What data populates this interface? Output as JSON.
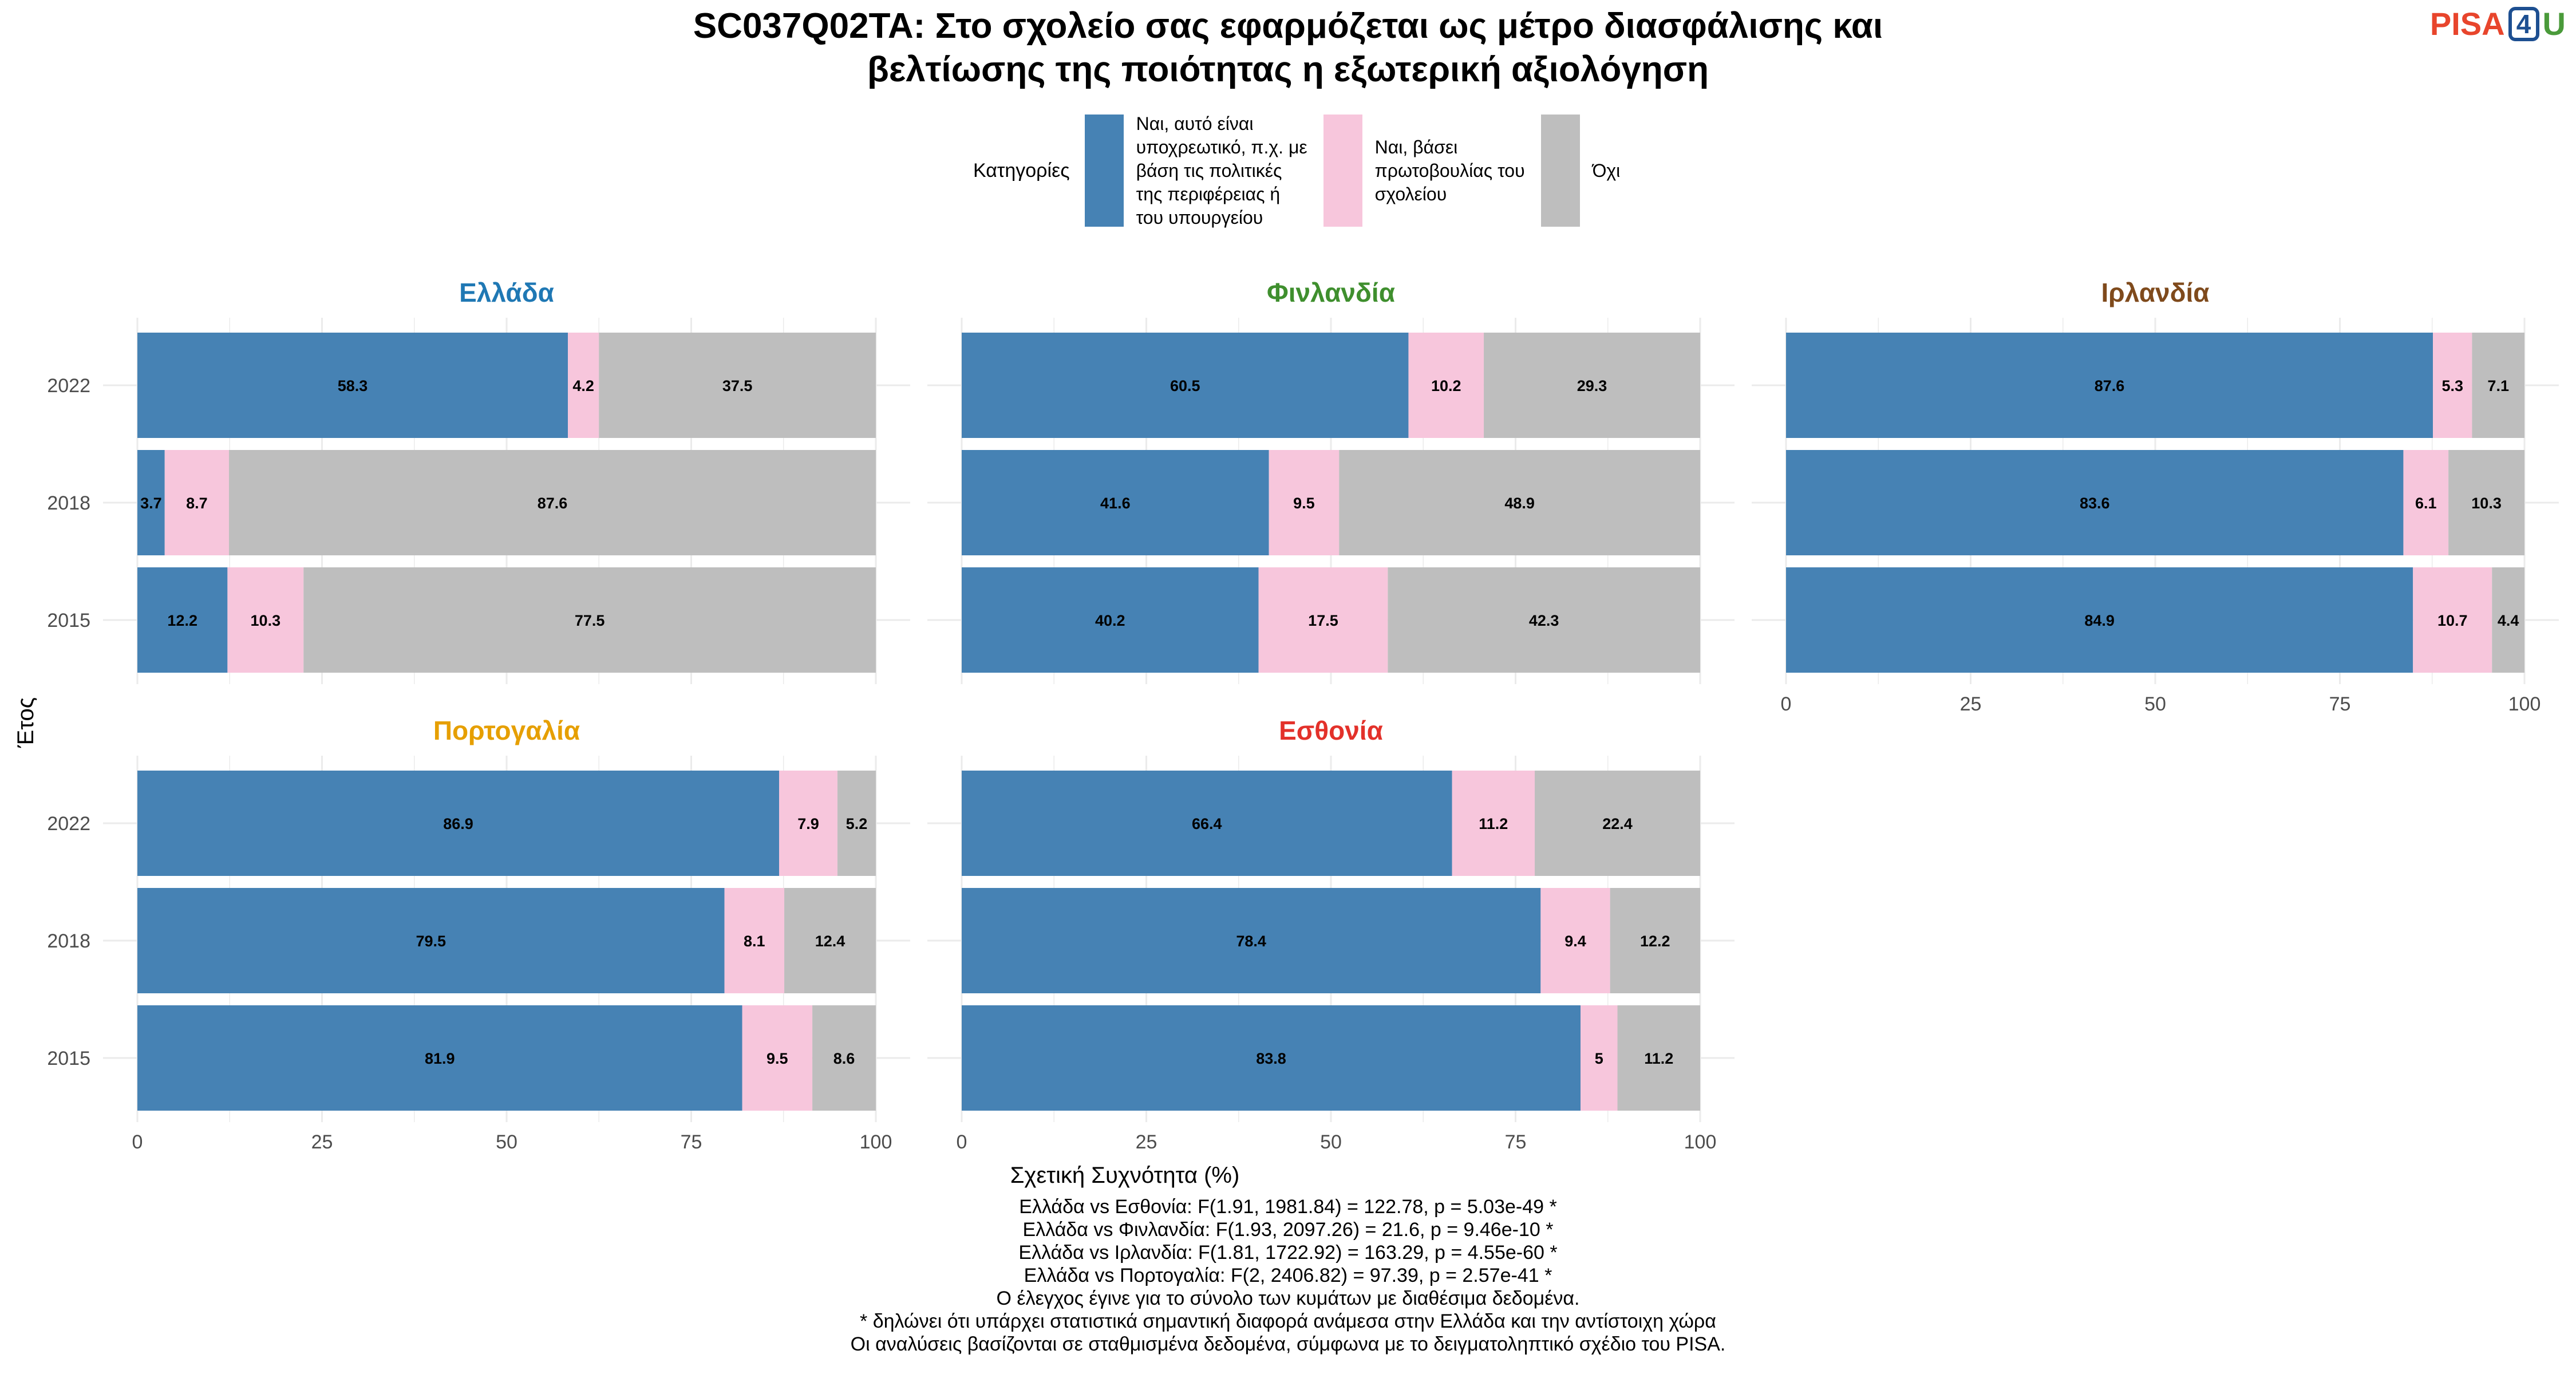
{
  "title_lines": [
    "SC037Q02TA: Στο σχολείο σας εφαρμόζεται ως μέτρο διασφάλισης και",
    "βελτίωσης της ποιότητας η εξωτερική αξιολόγηση"
  ],
  "logo": {
    "text_p": "PISA",
    "text_4": "4",
    "text_u": "U"
  },
  "legend": {
    "title": "Κατηγορίες",
    "items": [
      {
        "label": "Ναι, αυτό είναι\nυποχρεωτικό, π.χ. με\nβάση τις πολιτικές\nτης περιφέρειας ή\nτου υπουργείου",
        "color": "#4682b4"
      },
      {
        "label": "Ναι, βάσει\nπρωτοβουλίας του\nσχολείου",
        "color": "#f7c6dc"
      },
      {
        "label": "Όχι",
        "color": "#bebebe"
      }
    ]
  },
  "chart_data": {
    "type": "bar",
    "orientation": "horizontal",
    "stacked": true,
    "xlabel": "Σχετική Συχνότητα (%)",
    "ylabel": "Έτος",
    "xlim": [
      0,
      100
    ],
    "xticks": [
      0,
      25,
      50,
      75,
      100
    ],
    "categories": [
      "2022",
      "2018",
      "2015"
    ],
    "series_names": [
      "Ναι, αυτό είναι υποχρεωτικό, π.χ. με βάση τις πολιτικές της περιφέρειας ή του υπουργείου",
      "Ναι, βάσει πρωτοβουλίας του σχολείου",
      "Όχι"
    ],
    "series_colors": [
      "#4682b4",
      "#f7c6dc",
      "#bebebe"
    ],
    "grid": true,
    "legend_position": "top",
    "panels": [
      {
        "name": "Ελλάδα",
        "title_color": "#1f78b4",
        "values": {
          "2022": [
            58.3,
            4.2,
            37.5
          ],
          "2018": [
            3.7,
            8.7,
            87.6
          ],
          "2015": [
            12.2,
            10.3,
            77.5
          ]
        }
      },
      {
        "name": "Φινλανδία",
        "title_color": "#3f8f2e",
        "values": {
          "2022": [
            60.5,
            10.2,
            29.3
          ],
          "2018": [
            41.6,
            9.5,
            48.9
          ],
          "2015": [
            40.2,
            17.5,
            42.3
          ]
        }
      },
      {
        "name": "Ιρλανδία",
        "title_color": "#7f4a1c",
        "values": {
          "2022": [
            87.6,
            5.3,
            7.1
          ],
          "2018": [
            83.6,
            6.1,
            10.3
          ],
          "2015": [
            84.9,
            10.7,
            4.4
          ]
        }
      },
      {
        "name": "Πορτογαλία",
        "title_color": "#e69f00",
        "values": {
          "2022": [
            86.9,
            7.9,
            5.2
          ],
          "2018": [
            79.5,
            8.1,
            12.4
          ],
          "2015": [
            81.9,
            9.5,
            8.6
          ]
        }
      },
      {
        "name": "Εσθονία",
        "title_color": "#e3312a",
        "values": {
          "2022": [
            66.4,
            11.2,
            22.4
          ],
          "2018": [
            78.4,
            9.4,
            12.2
          ],
          "2015": [
            83.8,
            5,
            11.2
          ]
        }
      }
    ]
  },
  "footnotes": [
    "Ελλάδα vs Εσθονία: F(1.91, 1981.84) = 122.78, p = 5.03e-49 *",
    "Ελλάδα vs Φινλανδία: F(1.93, 2097.26) = 21.6, p = 9.46e-10 *",
    "Ελλάδα vs Ιρλανδία: F(1.81, 1722.92) = 163.29, p = 4.55e-60 *",
    "Ελλάδα vs Πορτογαλία: F(2, 2406.82) = 97.39, p = 2.57e-41 *",
    "Ο έλεγχος έγινε για το σύνολο των κυμάτων με διαθέσιμα δεδομένα.",
    "* δηλώνει ότι υπάρχει στατιστικά σημαντική διαφορά ανάμεσα στην Ελλάδα και την αντίστοιχη χώρα",
    "Οι αναλύσεις βασίζονται σε σταθμισμένα δεδομένα, σύμφωνα με το δειγματοληπτικό σχέδιο του PISA."
  ]
}
